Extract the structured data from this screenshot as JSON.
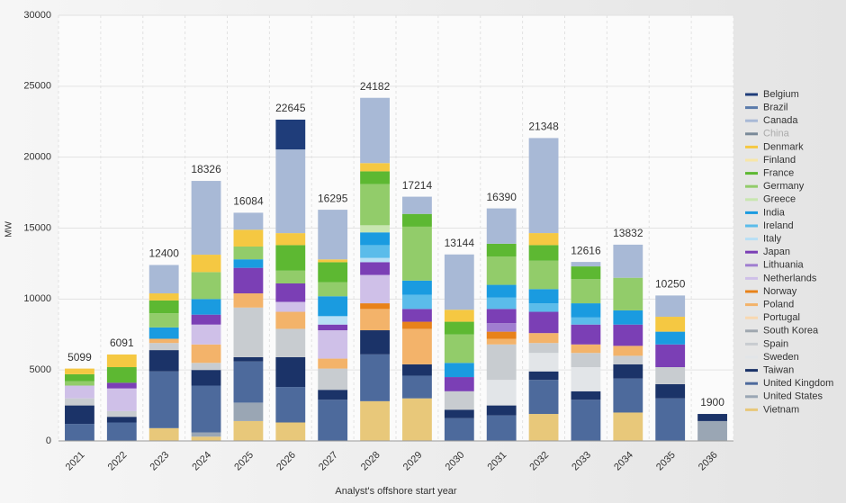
{
  "chart_data": {
    "type": "stacked_bar",
    "y_label": "MW",
    "x_label": "Analyst's offshore start year",
    "categories": [
      "2021",
      "2022",
      "2023",
      "2024",
      "2025",
      "2026",
      "2027",
      "2028",
      "2029",
      "2030",
      "2031",
      "2032",
      "2033",
      "2034",
      "2035",
      "2036"
    ],
    "totals": [
      5099,
      6091,
      12400,
      18326,
      16084,
      22645,
      16295,
      24182,
      17214,
      13144,
      16390,
      21348,
      12616,
      13832,
      10250,
      1900
    ],
    "ylim": [
      0,
      30000
    ],
    "yticks": [
      0,
      5000,
      10000,
      15000,
      20000,
      25000,
      30000
    ],
    "grid": true,
    "legend": "right",
    "series": [
      {
        "name": "Belgium",
        "color": "#1f3d7a",
        "values": [
          0,
          0,
          0,
          0,
          0,
          2100,
          0,
          0,
          0,
          0,
          0,
          0,
          0,
          0,
          0,
          0
        ]
      },
      {
        "name": "Brazil",
        "color": "#5b7bab",
        "values": [
          0,
          0,
          0,
          0,
          0,
          0,
          0,
          0,
          0,
          0,
          0,
          0,
          0,
          0,
          0,
          0
        ]
      },
      {
        "name": "Canada",
        "color": "#a8b9d6",
        "values": [
          0,
          0,
          2000,
          5200,
          1200,
          5900,
          3500,
          4600,
          1214,
          3900,
          2490,
          6700,
          316,
          2332,
          1500,
          0
        ]
      },
      {
        "name": "China",
        "color": "#7a8a99",
        "values": [
          0,
          0,
          0,
          0,
          0,
          0,
          0,
          0,
          0,
          0,
          0,
          0,
          0,
          0,
          0,
          0
        ]
      },
      {
        "name": "Denmark",
        "color": "#f5c842",
        "values": [
          399,
          891,
          500,
          1226,
          1184,
          845,
          200,
          582,
          0,
          844,
          0,
          848,
          0,
          0,
          1050,
          0
        ]
      },
      {
        "name": "Finland",
        "color": "#f7e6a8",
        "values": [
          0,
          0,
          0,
          0,
          0,
          0,
          0,
          0,
          0,
          0,
          0,
          0,
          0,
          0,
          0,
          0
        ]
      },
      {
        "name": "France",
        "color": "#5db832",
        "values": [
          500,
          1100,
          900,
          0,
          0,
          1800,
          1400,
          900,
          900,
          900,
          900,
          1100,
          900,
          0,
          0,
          0
        ]
      },
      {
        "name": "Germany",
        "color": "#92cc6a",
        "values": [
          300,
          0,
          1000,
          1900,
          900,
          900,
          1000,
          2900,
          3800,
          2000,
          2000,
          2000,
          1700,
          2300,
          0,
          0
        ]
      },
      {
        "name": "Greece",
        "color": "#c8e6b0",
        "values": [
          0,
          0,
          0,
          0,
          0,
          0,
          0,
          500,
          0,
          0,
          0,
          0,
          0,
          0,
          0,
          0
        ]
      },
      {
        "name": "India",
        "color": "#1a9be0",
        "values": [
          0,
          0,
          800,
          1100,
          600,
          0,
          1400,
          900,
          1000,
          1000,
          900,
          1000,
          1000,
          1000,
          900,
          0
        ]
      },
      {
        "name": "Ireland",
        "color": "#5bbcea",
        "values": [
          0,
          0,
          0,
          0,
          0,
          0,
          0,
          900,
          1000,
          0,
          800,
          600,
          500,
          0,
          0,
          0
        ]
      },
      {
        "name": "Italy",
        "color": "#b8dff5",
        "values": [
          0,
          0,
          0,
          0,
          0,
          0,
          595,
          300,
          0,
          0,
          0,
          0,
          0,
          0,
          0,
          0
        ]
      },
      {
        "name": "Japan",
        "color": "#7b3fb5",
        "values": [
          0,
          400,
          0,
          700,
          1800,
          1300,
          400,
          900,
          900,
          1000,
          1000,
          1500,
          1400,
          1500,
          1600,
          0
        ]
      },
      {
        "name": "Lithuania",
        "color": "#a07ed0",
        "values": [
          0,
          0,
          0,
          0,
          0,
          0,
          0,
          0,
          0,
          0,
          600,
          0,
          0,
          0,
          0,
          0
        ]
      },
      {
        "name": "Netherlands",
        "color": "#cfc0e8",
        "values": [
          900,
          1600,
          0,
          1400,
          0,
          700,
          2000,
          2000,
          0,
          0,
          0,
          0,
          0,
          0,
          0,
          0
        ]
      },
      {
        "name": "Norway",
        "color": "#e8821a",
        "values": [
          0,
          0,
          0,
          0,
          0,
          0,
          0,
          400,
          500,
          0,
          500,
          0,
          0,
          0,
          0,
          0
        ]
      },
      {
        "name": "Poland",
        "color": "#f3b36a",
        "values": [
          0,
          0,
          300,
          1300,
          1000,
          1200,
          700,
          1500,
          2500,
          0,
          400,
          700,
          600,
          700,
          0,
          0
        ]
      },
      {
        "name": "Portugal",
        "color": "#f8d8b0",
        "values": [
          0,
          0,
          0,
          0,
          0,
          0,
          0,
          0,
          0,
          0,
          0,
          0,
          0,
          0,
          0,
          0
        ]
      },
      {
        "name": "South Korea",
        "color": "#a0a8b0",
        "values": [
          0,
          0,
          0,
          0,
          0,
          0,
          0,
          0,
          0,
          0,
          0,
          0,
          0,
          0,
          0,
          0
        ]
      },
      {
        "name": "Spain",
        "color": "#c8ccd0",
        "values": [
          500,
          400,
          500,
          500,
          3500,
          2000,
          1500,
          0,
          0,
          1300,
          2500,
          700,
          1000,
          600,
          1200,
          0
        ]
      },
      {
        "name": "Sweden",
        "color": "#e2e5e8",
        "values": [
          0,
          0,
          0,
          0,
          0,
          0,
          0,
          0,
          0,
          0,
          1800,
          1300,
          1700,
          0,
          0,
          0
        ]
      },
      {
        "name": "Taiwan",
        "color": "#1b3368",
        "values": [
          1300,
          400,
          1500,
          1100,
          300,
          2100,
          700,
          1700,
          800,
          600,
          700,
          600,
          600,
          1000,
          1000,
          500
        ]
      },
      {
        "name": "United Kingdom",
        "color": "#4d6a9c",
        "values": [
          1200,
          1300,
          4000,
          3300,
          2900,
          2500,
          2900,
          3300,
          1600,
          1600,
          1800,
          2400,
          2900,
          2400,
          3000,
          0
        ]
      },
      {
        "name": "United States",
        "color": "#9aa6b4",
        "values": [
          0,
          0,
          0,
          300,
          1300,
          0,
          0,
          0,
          0,
          0,
          0,
          0,
          0,
          0,
          0,
          1400
        ]
      },
      {
        "name": "Vietnam",
        "color": "#e8c87a",
        "values": [
          0,
          0,
          900,
          300,
          1400,
          1300,
          0,
          2800,
          3000,
          0,
          0,
          1900,
          0,
          2000,
          0,
          0
        ]
      }
    ]
  }
}
